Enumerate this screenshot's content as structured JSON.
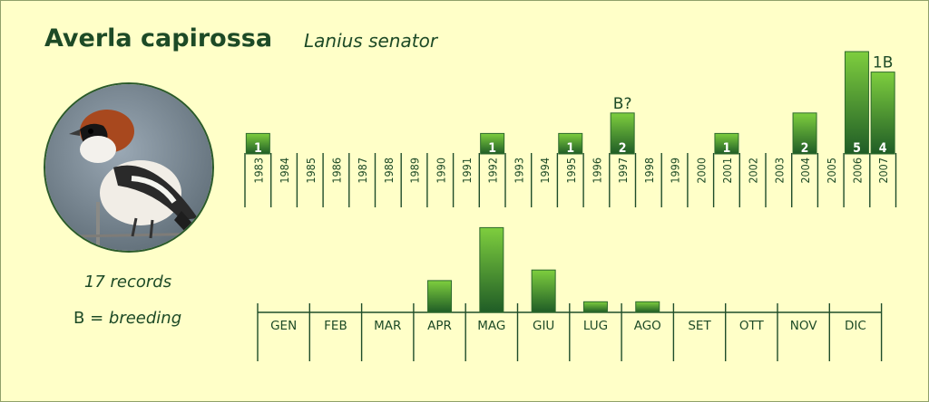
{
  "title": "Averla capirossa",
  "subtitle": "Lanius senator",
  "records_text": "17 records",
  "legend": {
    "symbol": "B",
    "equals": " = ",
    "meaning": "breeding"
  },
  "photo": {
    "icon": "woodchat-shrike-bird-icon"
  },
  "colors": {
    "bar_top": "#7ece3e",
    "bar_bottom": "#1f5c26",
    "text": "#1d4a26",
    "axis": "#1f4d2a"
  },
  "chart_data": [
    {
      "type": "bar",
      "title": "",
      "xlabel": "",
      "ylabel": "",
      "categories": [
        "1983",
        "1984",
        "1985",
        "1986",
        "1987",
        "1988",
        "1989",
        "1990",
        "1991",
        "1992",
        "1993",
        "1994",
        "1995",
        "1996",
        "1997",
        "1998",
        "1999",
        "2000",
        "2001",
        "2002",
        "2003",
        "2004",
        "2005",
        "2006",
        "2007"
      ],
      "values": [
        1,
        0,
        0,
        0,
        0,
        0,
        0,
        0,
        0,
        1,
        0,
        0,
        1,
        0,
        2,
        0,
        0,
        0,
        1,
        0,
        0,
        2,
        0,
        5,
        4
      ],
      "data_labels": [
        "1",
        "",
        "",
        "",
        "",
        "",
        "",
        "",
        "",
        "1",
        "",
        "",
        "1",
        "",
        "2",
        "",
        "",
        "",
        "1",
        "",
        "",
        "2",
        "",
        "5",
        "4"
      ],
      "annotations": [
        {
          "category": "1997",
          "text": "B?"
        },
        {
          "category": "2007",
          "text": "1B"
        }
      ]
    },
    {
      "type": "bar",
      "title": "",
      "xlabel": "",
      "ylabel": "",
      "categories": [
        "GEN",
        "FEB",
        "MAR",
        "APR",
        "MAG",
        "GIU",
        "LUG",
        "AGO",
        "SET",
        "OTT",
        "NOV",
        "DIC"
      ],
      "values": [
        0,
        0,
        0,
        3,
        8,
        4,
        1,
        1,
        0,
        0,
        0,
        0
      ]
    }
  ]
}
